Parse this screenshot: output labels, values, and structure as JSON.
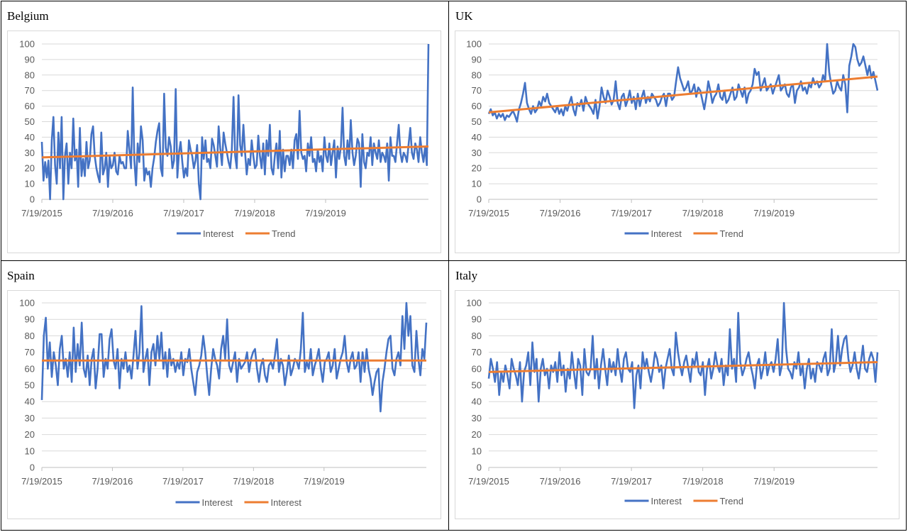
{
  "chart_data": [
    {
      "type": "line",
      "title": "Belgium",
      "x_tick_labels": [
        "7/19/2015",
        "7/19/2016",
        "7/19/2017",
        "7/19/2018",
        "7/19/2019"
      ],
      "ylim": [
        0,
        100
      ],
      "y_ticks": [
        0,
        10,
        20,
        30,
        40,
        50,
        60,
        70,
        80,
        90,
        100
      ],
      "legend_position": "bottom",
      "series": [
        {
          "name": "Interest",
          "color": "#4472C4",
          "values": [
            37,
            12,
            24,
            14,
            25,
            0,
            38,
            53,
            22,
            10,
            43,
            20,
            53,
            0,
            28,
            36,
            10,
            30,
            20,
            52,
            25,
            32,
            8,
            46,
            15,
            26,
            15,
            37,
            20,
            25,
            42,
            47,
            28,
            20,
            15,
            11,
            43,
            16,
            20,
            30,
            8,
            28,
            20,
            22,
            30,
            18,
            16,
            28,
            23,
            24,
            20,
            20,
            44,
            32,
            20,
            72,
            25,
            9,
            36,
            24,
            47,
            38,
            12,
            20,
            16,
            18,
            8,
            20,
            27,
            37,
            44,
            49,
            20,
            15,
            68,
            33,
            28,
            40,
            34,
            20,
            25,
            71,
            14,
            30,
            37,
            24,
            14,
            20,
            15,
            38,
            32,
            28,
            20,
            25,
            35,
            10,
            0,
            40,
            26,
            38,
            24,
            26,
            20,
            39,
            35,
            28,
            21,
            47,
            33,
            22,
            43,
            36,
            30,
            24,
            20,
            32,
            66,
            28,
            20,
            67,
            35,
            28,
            48,
            30,
            16,
            26,
            22,
            38,
            28,
            20,
            22,
            41,
            28,
            20,
            36,
            16,
            38,
            28,
            48,
            20,
            16,
            28,
            36,
            20,
            44,
            14,
            32,
            18,
            28,
            28,
            22,
            32,
            20,
            38,
            42,
            26,
            57,
            30,
            26,
            28,
            18,
            36,
            28,
            40,
            24,
            26,
            18,
            32,
            24,
            28,
            18,
            40,
            28,
            24,
            36,
            22,
            30,
            38,
            14,
            34,
            26,
            34,
            59,
            28,
            22,
            38,
            26,
            51,
            30,
            22,
            28,
            39,
            36,
            8,
            42,
            24,
            20,
            30,
            28,
            40,
            22,
            36,
            30,
            26,
            38,
            24,
            30,
            28,
            24,
            36,
            12,
            40,
            28,
            28,
            24,
            36,
            48,
            30,
            24,
            30,
            28,
            24,
            36,
            46,
            30,
            26,
            36,
            32,
            24,
            40,
            30,
            24,
            34,
            22,
            100
          ]
        },
        {
          "name": "Trend",
          "color": "#ED7D31",
          "values": [
            27,
            34
          ]
        }
      ]
    },
    {
      "type": "line",
      "title": "UK",
      "x_tick_labels": [
        "7/19/2015",
        "7/19/2016",
        "7/19/2017",
        "7/19/2018",
        "7/19/2019"
      ],
      "ylim": [
        0,
        100
      ],
      "y_ticks": [
        0,
        10,
        20,
        30,
        40,
        50,
        60,
        70,
        80,
        90,
        100
      ],
      "legend_position": "bottom",
      "series": [
        {
          "name": "Interest",
          "color": "#4472C4",
          "values": [
            55,
            58,
            54,
            56,
            52,
            55,
            53,
            55,
            51,
            54,
            53,
            55,
            57,
            54,
            50,
            58,
            62,
            68,
            75,
            62,
            58,
            55,
            60,
            56,
            58,
            63,
            60,
            66,
            63,
            68,
            62,
            60,
            58,
            56,
            60,
            55,
            58,
            54,
            60,
            57,
            62,
            66,
            58,
            54,
            62,
            60,
            64,
            57,
            66,
            62,
            60,
            58,
            55,
            64,
            52,
            60,
            72,
            66,
            62,
            70,
            66,
            61,
            64,
            76,
            62,
            58,
            66,
            68,
            60,
            64,
            70,
            62,
            66,
            58,
            68,
            60,
            66,
            70,
            62,
            66,
            63,
            68,
            66,
            64,
            60,
            62,
            66,
            68,
            60,
            68,
            68,
            64,
            66,
            76,
            85,
            78,
            74,
            70,
            72,
            76,
            68,
            70,
            74,
            66,
            72,
            70,
            64,
            58,
            66,
            76,
            70,
            62,
            66,
            68,
            74,
            66,
            64,
            70,
            62,
            64,
            68,
            72,
            64,
            66,
            74,
            70,
            66,
            72,
            62,
            68,
            70,
            74,
            84,
            80,
            82,
            70,
            74,
            78,
            70,
            72,
            74,
            68,
            72,
            76,
            80,
            70,
            72,
            74,
            68,
            66,
            72,
            74,
            62,
            70,
            72,
            76,
            70,
            72,
            68,
            74,
            72,
            78,
            74,
            76,
            72,
            74,
            80,
            76,
            100,
            82,
            74,
            68,
            70,
            76,
            72,
            70,
            80,
            74,
            56,
            86,
            92,
            100,
            98,
            90,
            86,
            88,
            92,
            86,
            80,
            86,
            78,
            82,
            76,
            70
          ]
        },
        {
          "name": "Trend",
          "color": "#ED7D31",
          "values": [
            56,
            79
          ]
        }
      ]
    },
    {
      "type": "line",
      "title": "Spain",
      "x_tick_labels": [
        "7/19/2015",
        "7/19/2016",
        "7/19/2017",
        "7/19/2018",
        "7/19/2019"
      ],
      "ylim": [
        0,
        100
      ],
      "y_ticks": [
        0,
        10,
        20,
        30,
        40,
        50,
        60,
        70,
        80,
        90,
        100
      ],
      "legend_position": "bottom",
      "series": [
        {
          "name": "Interest",
          "color": "#4472C4",
          "values": [
            41,
            80,
            91,
            60,
            76,
            55,
            70,
            62,
            50,
            72,
            80,
            60,
            66,
            55,
            70,
            52,
            85,
            58,
            75,
            62,
            88,
            60,
            55,
            68,
            50,
            66,
            72,
            48,
            60,
            81,
            81,
            55,
            66,
            60,
            78,
            84,
            65,
            60,
            72,
            48,
            66,
            60,
            70,
            58,
            62,
            54,
            68,
            83,
            60,
            70,
            98,
            58,
            66,
            72,
            50,
            70,
            75,
            62,
            80,
            66,
            82,
            60,
            70,
            55,
            72,
            62,
            66,
            58,
            64,
            60,
            70,
            56,
            66,
            64,
            72,
            60,
            52,
            44,
            58,
            62,
            68,
            80,
            70,
            56,
            44,
            60,
            72,
            66,
            62,
            54,
            72,
            80,
            66,
            90,
            62,
            58,
            64,
            70,
            52,
            66,
            60,
            62,
            64,
            70,
            58,
            66,
            70,
            72,
            60,
            52,
            62,
            66,
            56,
            52,
            62,
            64,
            60,
            68,
            78,
            58,
            66,
            62,
            50,
            58,
            68,
            56,
            60,
            66,
            64,
            60,
            72,
            94,
            58,
            64,
            60,
            72,
            56,
            62,
            66,
            72,
            60,
            52,
            64,
            66,
            70,
            58,
            62,
            72,
            54,
            60,
            66,
            70,
            80,
            64,
            58,
            66,
            70,
            60,
            62,
            70,
            52,
            70,
            58,
            72,
            60,
            54,
            44,
            52,
            58,
            60,
            34,
            52,
            60,
            70,
            78,
            80,
            60,
            56,
            66,
            70,
            62,
            92,
            72,
            100,
            80,
            92,
            62,
            58,
            83,
            66,
            56,
            72,
            66,
            88
          ]
        },
        {
          "name": "Interest",
          "color": "#ED7D31",
          "values": [
            65,
            65
          ]
        }
      ]
    },
    {
      "type": "line",
      "title": "Italy",
      "x_tick_labels": [
        "7/19/2015",
        "7/19/2016",
        "7/19/2017",
        "7/19/2018",
        "7/19/2019"
      ],
      "ylim": [
        0,
        100
      ],
      "y_ticks": [
        0,
        10,
        20,
        30,
        40,
        50,
        60,
        70,
        80,
        90,
        100
      ],
      "legend_position": "bottom",
      "series": [
        {
          "name": "Interest",
          "color": "#4472C4",
          "values": [
            54,
            66,
            60,
            52,
            64,
            44,
            58,
            52,
            62,
            56,
            48,
            66,
            60,
            56,
            50,
            64,
            40,
            58,
            62,
            70,
            50,
            76,
            58,
            66,
            40,
            60,
            66,
            56,
            60,
            48,
            62,
            58,
            64,
            52,
            70,
            56,
            62,
            46,
            60,
            54,
            70,
            58,
            48,
            66,
            62,
            44,
            72,
            58,
            56,
            60,
            80,
            54,
            66,
            48,
            62,
            72,
            60,
            50,
            66,
            58,
            64,
            56,
            72,
            60,
            52,
            66,
            70,
            60,
            58,
            64,
            36,
            56,
            62,
            48,
            70,
            60,
            66,
            58,
            52,
            60,
            70,
            66,
            58,
            62,
            48,
            60,
            66,
            72,
            60,
            56,
            82,
            70,
            62,
            56,
            64,
            68,
            60,
            52,
            66,
            62,
            70,
            58,
            56,
            64,
            44,
            60,
            66,
            54,
            60,
            70,
            62,
            58,
            66,
            50,
            62,
            56,
            84,
            60,
            66,
            52,
            94,
            64,
            56,
            60,
            66,
            70,
            62,
            56,
            48,
            62,
            66,
            54,
            60,
            70,
            56,
            62,
            64,
            58,
            66,
            78,
            56,
            62,
            100,
            72,
            60,
            58,
            54,
            64,
            60,
            70,
            56,
            62,
            48,
            60,
            66,
            54,
            60,
            52,
            64,
            62,
            58,
            66,
            70,
            56,
            60,
            84,
            58,
            64,
            80,
            62,
            72,
            78,
            80,
            66,
            58,
            62,
            70,
            60,
            54,
            64,
            74,
            60,
            58,
            66,
            70,
            66,
            52,
            70
          ]
        },
        {
          "name": "Trend",
          "color": "#ED7D31",
          "values": [
            58,
            64
          ]
        }
      ]
    }
  ]
}
